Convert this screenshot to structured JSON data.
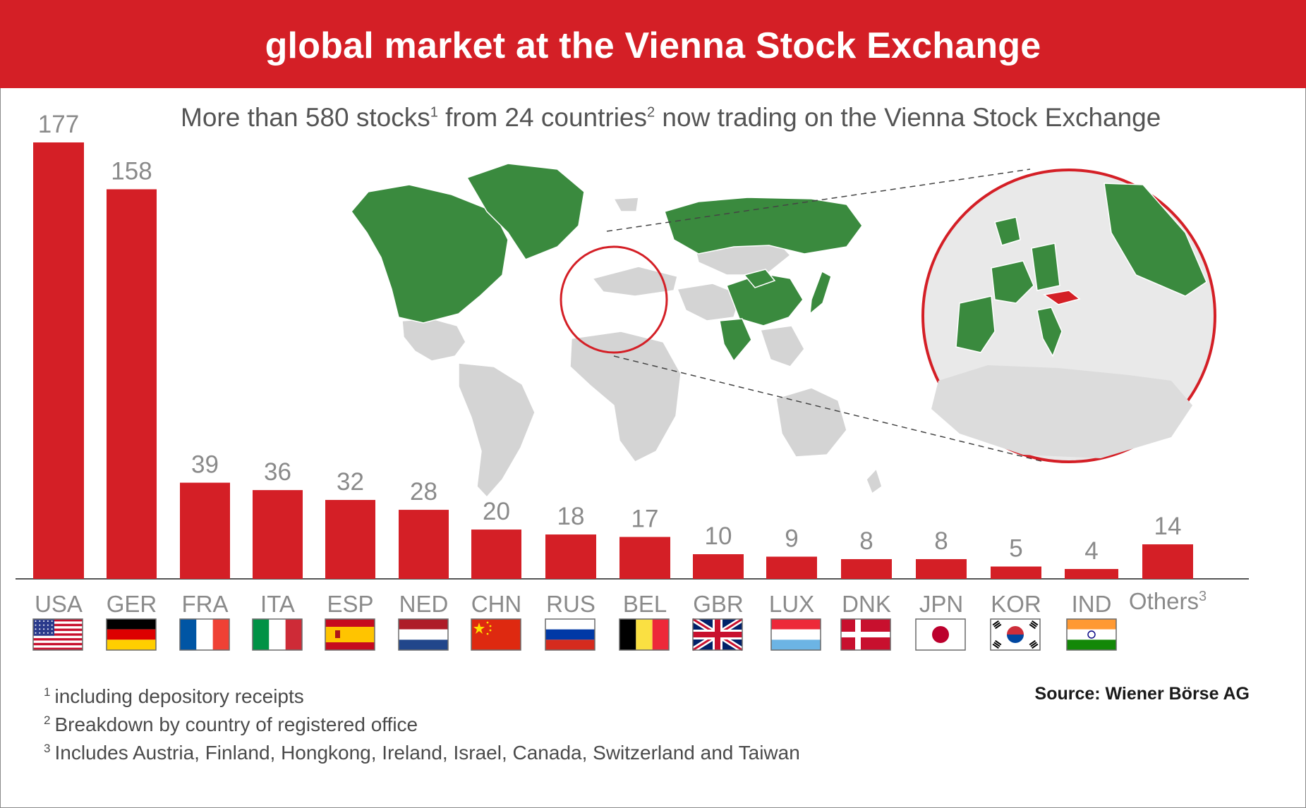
{
  "title": "global market at the Vienna Stock Exchange",
  "subtitle": {
    "part1": "More than 580 stocks",
    "sup1": "1",
    "part2": " from 24 countries",
    "sup2": "2",
    "part3": " now trading on the Vienna Stock Exchange"
  },
  "footnotes": [
    {
      "mark": "1",
      "text": "including depository receipts"
    },
    {
      "mark": "2",
      "text": "Breakdown by country of registered office"
    },
    {
      "mark": "3",
      "text": "Includes Austria, Finland, Hongkong, Ireland, Israel, Canada, Switzerland and Taiwan"
    }
  ],
  "source": "Source: Wiener Börse AG",
  "colors": {
    "bar": "#d41f26",
    "highlight_country": "#3a8a3e",
    "other_land": "#d4d4d4",
    "austria": "#d41f26"
  },
  "chart_data": {
    "type": "bar",
    "categories": [
      "USA",
      "GER",
      "FRA",
      "ITA",
      "ESP",
      "NED",
      "CHN",
      "RUS",
      "BEL",
      "GBR",
      "LUX",
      "DNK",
      "JPN",
      "KOR",
      "IND",
      "Others"
    ],
    "category_superscripts": {
      "Others": "3"
    },
    "values": [
      177,
      158,
      39,
      36,
      32,
      28,
      20,
      18,
      17,
      10,
      9,
      8,
      8,
      5,
      4,
      14
    ],
    "flags": [
      "us-flag",
      "de-flag",
      "fr-flag",
      "it-flag",
      "es-flag",
      "nl-flag",
      "cn-flag",
      "ru-flag",
      "be-flag",
      "gb-flag",
      "lu-flag",
      "dk-flag",
      "jp-flag",
      "kr-flag",
      "in-flag",
      ""
    ],
    "ylim": [
      0,
      177
    ],
    "grid": false
  }
}
